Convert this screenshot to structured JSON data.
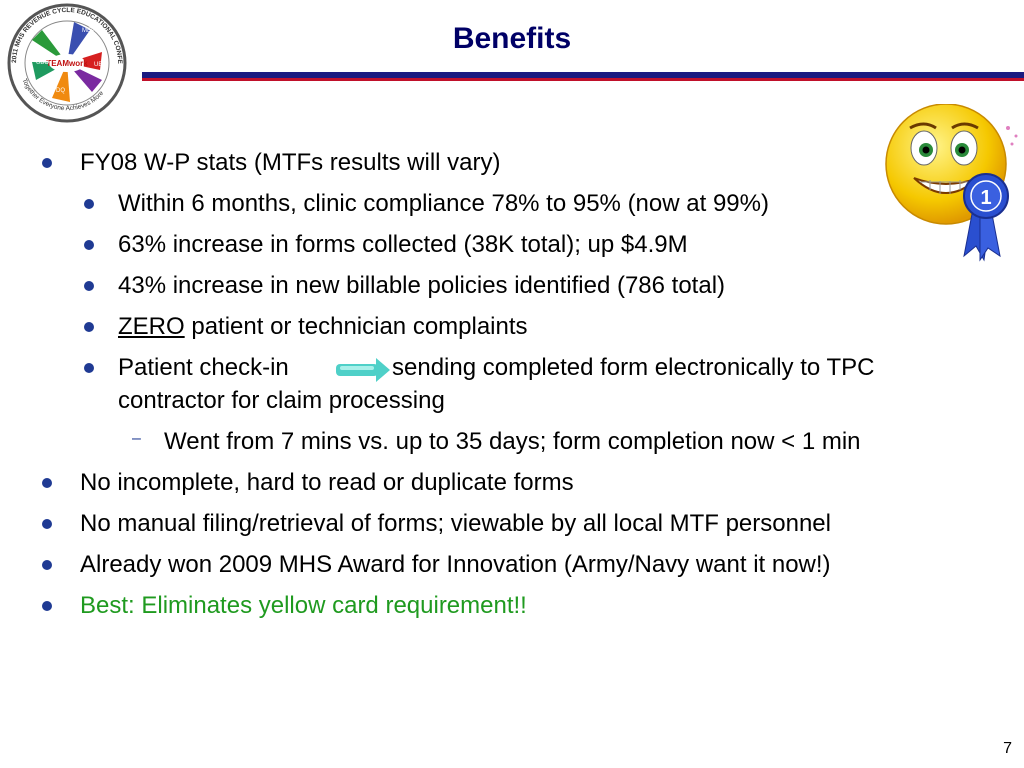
{
  "slide": {
    "title": "Benefits",
    "page_number": "7"
  },
  "logo": {
    "ring_text": "2011 MHS REVENUE CYCLE EDUCATIONAL CONFERENCE",
    "tagline": "Together Everyone Achieves More",
    "center": "TEAMwork",
    "hands": [
      "MEPRS",
      "UBO",
      "UBU",
      "DQ"
    ],
    "icon": "conference-logo-icon"
  },
  "bullets": {
    "b1": "FY08 W-P stats (MTFs results will vary)",
    "b1a": "Within 6 months, clinic compliance 78% to 95% (now at 99%)",
    "b1b": "63% increase in forms collected (38K total); up $4.9M",
    "b1c": "43% increase in new billable policies identified (786 total)",
    "b1d_u": "ZERO",
    "b1d_rest": " patient or technician complaints",
    "b1e_part1": "Patient check-in",
    "b1e_part2": "sending completed form electronically to TPC",
    "b1e_line2": "contractor for claim processing",
    "b1e_sub": "Went from 7 mins vs. up to 35 days; form completion now < 1 min",
    "b2": "No incomplete, hard to read or duplicate forms",
    "b3": "No manual filing/retrieval of forms; viewable by all local MTF personnel",
    "b4": "Already won 2009 MHS Award for Innovation (Army/Navy want it now!)",
    "b5": "Best: Eliminates yellow card requirement!!"
  },
  "colors": {
    "title": "#000066",
    "bullet": "#1f3a93",
    "highlight": "#1f9a1f",
    "arrow": "#4fd0c8"
  },
  "smiley": {
    "icon": "smiley-first-place-ribbon-icon",
    "badge": "1"
  }
}
